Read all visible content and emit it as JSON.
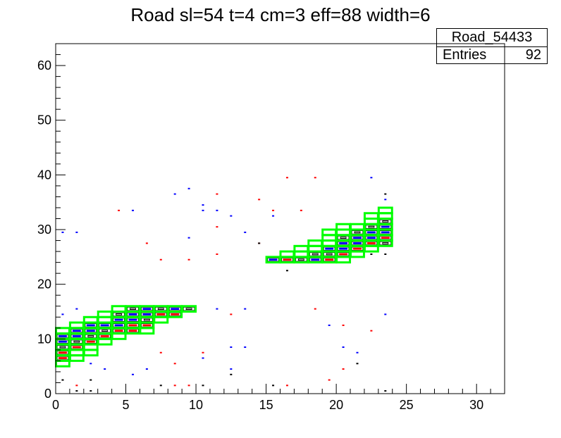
{
  "title": "Road sl=54 t=4 cm=3 eff=88 width=6",
  "stats": {
    "name": "Road_54433",
    "entries_label": "Entries",
    "entries_value": "92"
  },
  "colors": {
    "road": "#00ff00",
    "blue": "#0000ff",
    "red": "#ff0000",
    "black": "#000000"
  },
  "chart_data": {
    "type": "heatmap",
    "title": "Road sl=54 t=4 cm=3 eff=88 width=6",
    "xlabel": "",
    "ylabel": "",
    "xlim": [
      0,
      32
    ],
    "ylim": [
      0,
      64
    ],
    "xticks": [
      0,
      5,
      10,
      15,
      20,
      25,
      30
    ],
    "yticks": [
      0,
      10,
      20,
      30,
      40,
      50,
      60
    ],
    "road_cells": [
      [
        0,
        5
      ],
      [
        0,
        6
      ],
      [
        0,
        7
      ],
      [
        0,
        8
      ],
      [
        0,
        9
      ],
      [
        0,
        10
      ],
      [
        0,
        11
      ],
      [
        1,
        6
      ],
      [
        1,
        7
      ],
      [
        1,
        8
      ],
      [
        1,
        9
      ],
      [
        1,
        10
      ],
      [
        1,
        11
      ],
      [
        1,
        12
      ],
      [
        2,
        7
      ],
      [
        2,
        8
      ],
      [
        2,
        9
      ],
      [
        2,
        10
      ],
      [
        2,
        11
      ],
      [
        2,
        12
      ],
      [
        2,
        13
      ],
      [
        3,
        9
      ],
      [
        3,
        10
      ],
      [
        3,
        11
      ],
      [
        3,
        12
      ],
      [
        3,
        13
      ],
      [
        3,
        14
      ],
      [
        4,
        10
      ],
      [
        4,
        11
      ],
      [
        4,
        12
      ],
      [
        4,
        13
      ],
      [
        4,
        14
      ],
      [
        4,
        15
      ],
      [
        5,
        11
      ],
      [
        5,
        12
      ],
      [
        5,
        13
      ],
      [
        5,
        14
      ],
      [
        5,
        15
      ],
      [
        6,
        11
      ],
      [
        6,
        12
      ],
      [
        6,
        13
      ],
      [
        6,
        14
      ],
      [
        6,
        15
      ],
      [
        7,
        13
      ],
      [
        7,
        14
      ],
      [
        7,
        15
      ],
      [
        8,
        14
      ],
      [
        8,
        15
      ],
      [
        9,
        15
      ],
      [
        15,
        24
      ],
      [
        16,
        24
      ],
      [
        16,
        25
      ],
      [
        17,
        24
      ],
      [
        17,
        25
      ],
      [
        17,
        26
      ],
      [
        18,
        24
      ],
      [
        18,
        25
      ],
      [
        18,
        26
      ],
      [
        18,
        27
      ],
      [
        19,
        24
      ],
      [
        19,
        25
      ],
      [
        19,
        26
      ],
      [
        19,
        27
      ],
      [
        19,
        28
      ],
      [
        19,
        29
      ],
      [
        20,
        24
      ],
      [
        20,
        25
      ],
      [
        20,
        26
      ],
      [
        20,
        27
      ],
      [
        20,
        28
      ],
      [
        20,
        29
      ],
      [
        20,
        30
      ],
      [
        21,
        25
      ],
      [
        21,
        26
      ],
      [
        21,
        27
      ],
      [
        21,
        28
      ],
      [
        21,
        29
      ],
      [
        21,
        30
      ],
      [
        22,
        26
      ],
      [
        22,
        27
      ],
      [
        22,
        28
      ],
      [
        22,
        29
      ],
      [
        22,
        30
      ],
      [
        22,
        31
      ],
      [
        22,
        32
      ],
      [
        23,
        27
      ],
      [
        23,
        28
      ],
      [
        23,
        29
      ],
      [
        23,
        30
      ],
      [
        23,
        31
      ],
      [
        23,
        32
      ],
      [
        23,
        33
      ]
    ],
    "blue_cells": [
      [
        0,
        9
      ],
      [
        0,
        10
      ],
      [
        1,
        10
      ],
      [
        1,
        11
      ],
      [
        2,
        11
      ],
      [
        2,
        12
      ],
      [
        3,
        12
      ],
      [
        4,
        12
      ],
      [
        4,
        13
      ],
      [
        5,
        13
      ],
      [
        5,
        14
      ],
      [
        6,
        14
      ],
      [
        6,
        15
      ],
      [
        7,
        15
      ],
      [
        8,
        15
      ],
      [
        15,
        24
      ],
      [
        18,
        24
      ],
      [
        19,
        26
      ],
      [
        20,
        26
      ],
      [
        20,
        27
      ],
      [
        21,
        27
      ],
      [
        21,
        28
      ],
      [
        22,
        28
      ],
      [
        22,
        29
      ],
      [
        23,
        29
      ],
      [
        23,
        30
      ]
    ],
    "red_cells": [
      [
        0,
        6
      ],
      [
        0,
        7
      ],
      [
        1,
        8
      ],
      [
        2,
        9
      ],
      [
        3,
        10
      ],
      [
        4,
        11
      ],
      [
        5,
        11
      ],
      [
        5,
        12
      ],
      [
        6,
        12
      ],
      [
        7,
        14
      ],
      [
        8,
        14
      ],
      [
        16,
        24
      ],
      [
        19,
        24
      ],
      [
        20,
        25
      ],
      [
        21,
        26
      ],
      [
        22,
        27
      ],
      [
        23,
        28
      ]
    ],
    "black_cells": [
      [
        0,
        8
      ],
      [
        1,
        9
      ],
      [
        2,
        10
      ],
      [
        3,
        11
      ],
      [
        4,
        14
      ],
      [
        5,
        15
      ],
      [
        6,
        13
      ],
      [
        7,
        15
      ],
      [
        9,
        15
      ],
      [
        17,
        24
      ],
      [
        18,
        25
      ],
      [
        19,
        25
      ],
      [
        20,
        28
      ],
      [
        21,
        29
      ],
      [
        22,
        30
      ],
      [
        23,
        31
      ],
      [
        23,
        27
      ]
    ],
    "scatter_blue": [
      [
        0.5,
        14.5
      ],
      [
        1.5,
        15.5
      ],
      [
        2.5,
        5.5
      ],
      [
        3.5,
        4.5
      ],
      [
        5.5,
        3.5
      ],
      [
        6.5,
        4.5
      ],
      [
        8.5,
        36.5
      ],
      [
        9.5,
        37.5
      ],
      [
        10.5,
        34.5
      ],
      [
        10.5,
        33.5
      ],
      [
        11.5,
        33.5
      ],
      [
        12.5,
        32.5
      ],
      [
        13.5,
        29.5
      ],
      [
        11.5,
        15.5
      ],
      [
        13.5,
        15.5
      ],
      [
        12.5,
        8.5
      ],
      [
        13.5,
        8.5
      ],
      [
        12.5,
        4.5
      ],
      [
        10.5,
        6.5
      ],
      [
        15.5,
        32.5
      ],
      [
        5.5,
        33.5
      ],
      [
        9.5,
        28.5
      ],
      [
        19.5,
        12.5
      ],
      [
        20.5,
        8.5
      ],
      [
        21.5,
        7.5
      ],
      [
        22.5,
        39.5
      ],
      [
        23.5,
        35.5
      ],
      [
        23.5,
        14.5
      ],
      [
        0.5,
        29.5
      ],
      [
        1.5,
        29.5
      ]
    ],
    "scatter_red": [
      [
        1.5,
        1.5
      ],
      [
        8.5,
        1.5
      ],
      [
        9.5,
        1.5
      ],
      [
        16.5,
        1.5
      ],
      [
        4.5,
        33.5
      ],
      [
        6.5,
        27.5
      ],
      [
        7.5,
        24.5
      ],
      [
        9.5,
        24.5
      ],
      [
        11.5,
        36.5
      ],
      [
        11.5,
        30.5
      ],
      [
        11.5,
        25.5
      ],
      [
        14.5,
        35.5
      ],
      [
        15.5,
        33.5
      ],
      [
        17.5,
        33.5
      ],
      [
        16.5,
        39.5
      ],
      [
        18.5,
        39.5
      ],
      [
        18.5,
        15.5
      ],
      [
        20.5,
        12.5
      ],
      [
        20.5,
        4.5
      ],
      [
        19.5,
        2.5
      ],
      [
        22.5,
        11.5
      ],
      [
        7.5,
        7.5
      ],
      [
        8.5,
        5.5
      ],
      [
        10.5,
        7.5
      ],
      [
        12.5,
        14.5
      ],
      [
        14.5,
        27.5
      ]
    ],
    "scatter_black": [
      [
        0.5,
        2.5
      ],
      [
        1.5,
        0.5
      ],
      [
        2.5,
        2.5
      ],
      [
        2.5,
        0.5
      ],
      [
        10.5,
        1.5
      ],
      [
        15.5,
        1.5
      ],
      [
        14.5,
        27.5
      ],
      [
        16.5,
        22.5
      ],
      [
        23.5,
        36.5
      ],
      [
        23.5,
        25.5
      ],
      [
        22.5,
        25.5
      ],
      [
        21.5,
        5.5
      ],
      [
        12.5,
        3.5
      ],
      [
        7.5,
        1.5
      ],
      [
        23.5,
        0.5
      ]
    ]
  }
}
